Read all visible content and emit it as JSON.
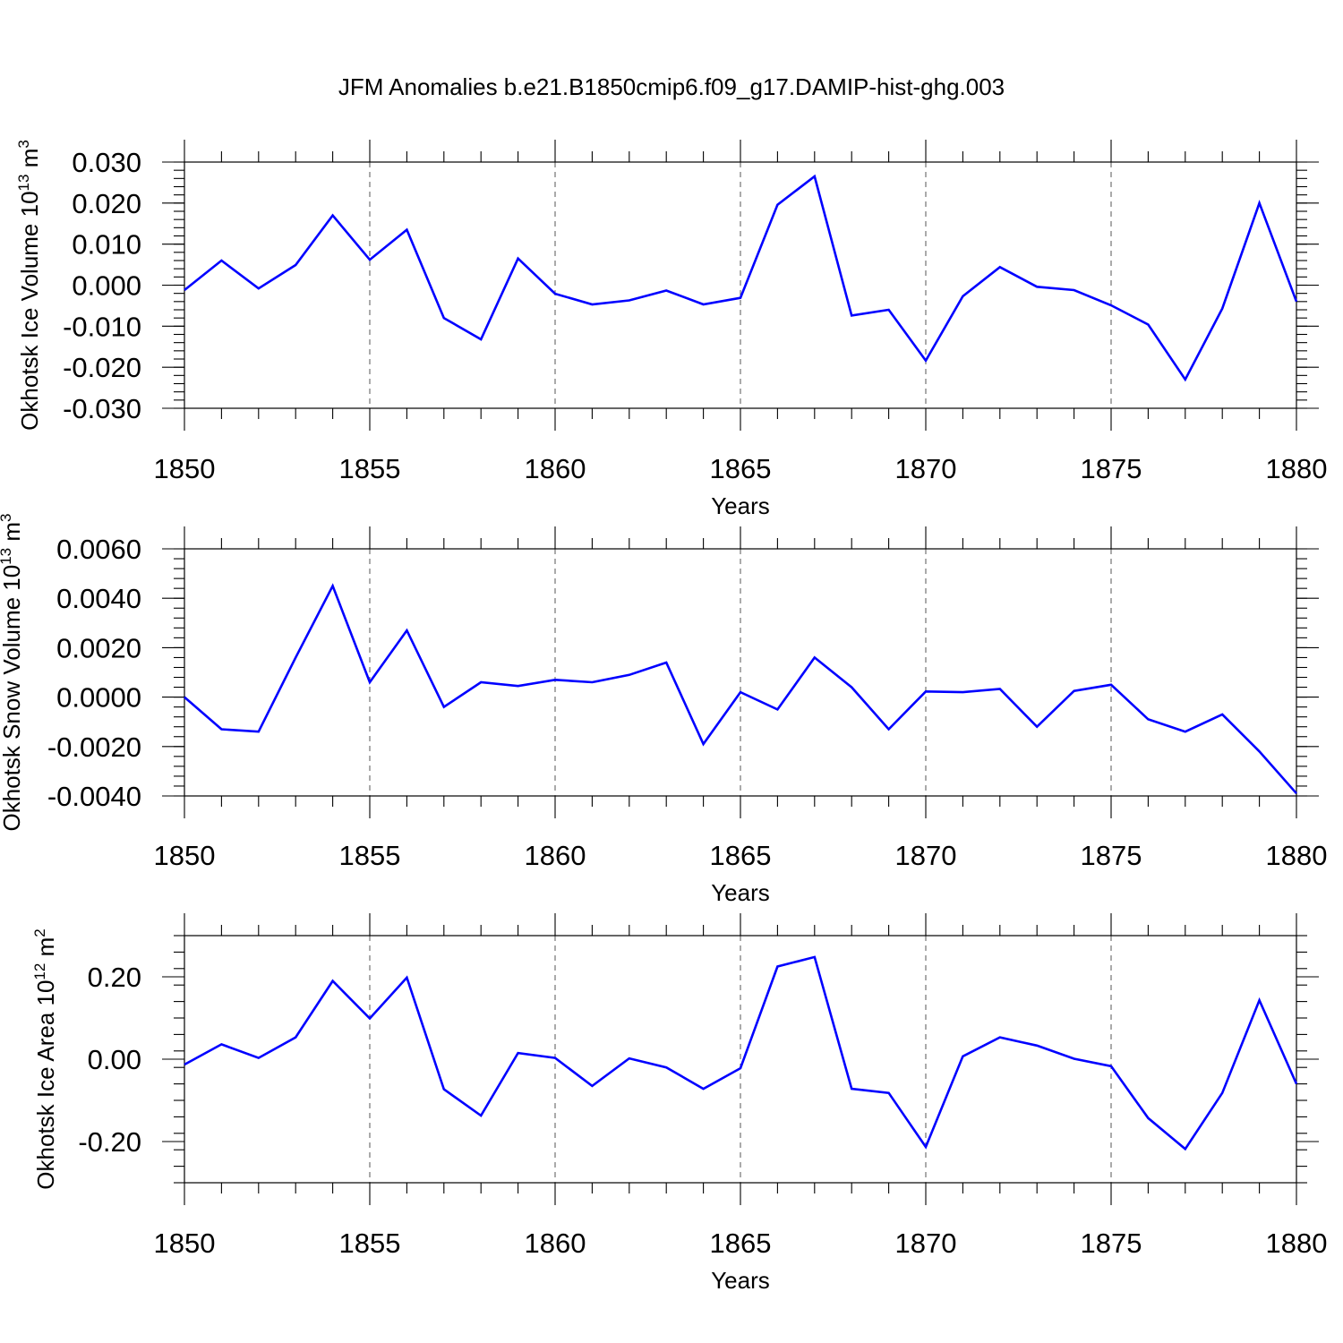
{
  "title": "JFM Anomalies b.e21.B1850cmip6.f09_g17.DAMIP-hist-ghg.003",
  "colors": {
    "line": "#0000ff",
    "grid": "#666666",
    "axes": "#000000"
  },
  "chart_data": [
    {
      "type": "line",
      "ylabel": "Okhotsk Ice Volume 10",
      "ylabel_exp": "13",
      "ylabel_unit": " m",
      "ylabel_unit_exp": "3",
      "xlabel": "Years",
      "xlim": [
        1850,
        1880
      ],
      "ylim": [
        -0.03,
        0.03
      ],
      "xticks": [
        "1850",
        "1855",
        "1860",
        "1865",
        "1870",
        "1875",
        "1880"
      ],
      "yticks": [
        "0.030",
        "0.020",
        "0.010",
        "0.000",
        "-0.010",
        "-0.020",
        "-0.030"
      ],
      "ytick_values": [
        0.03,
        0.02,
        0.01,
        0.0,
        -0.01,
        -0.02,
        -0.03
      ],
      "grid": "vertical dashed at labelled years",
      "x": [
        1850,
        1851,
        1852,
        1853,
        1854,
        1855,
        1856,
        1857,
        1858,
        1859,
        1860,
        1861,
        1862,
        1863,
        1864,
        1865,
        1866,
        1867,
        1868,
        1869,
        1870,
        1871,
        1872,
        1873,
        1874,
        1875,
        1876,
        1877,
        1878,
        1879,
        1880
      ],
      "series": [
        {
          "values": [
            -0.0012,
            0.006,
            -0.0008,
            0.0049,
            0.017,
            0.0062,
            0.0135,
            -0.008,
            -0.0132,
            0.0065,
            -0.0021,
            -0.0047,
            -0.0037,
            -0.0013,
            -0.0047,
            -0.0031,
            0.0196,
            0.0265,
            -0.0074,
            -0.006,
            -0.0184,
            -0.0027,
            0.0044,
            -0.0004,
            -0.0012,
            -0.0049,
            -0.0096,
            -0.023,
            -0.0057,
            0.02,
            -0.004
          ]
        }
      ]
    },
    {
      "type": "line",
      "ylabel": "Okhotsk Snow Volume 10",
      "ylabel_exp": "13",
      "ylabel_unit": " m",
      "ylabel_unit_exp": "3",
      "xlabel": "Years",
      "xlim": [
        1850,
        1880
      ],
      "ylim": [
        -0.004,
        0.006
      ],
      "xticks": [
        "1850",
        "1855",
        "1860",
        "1865",
        "1870",
        "1875",
        "1880"
      ],
      "yticks": [
        "0.0060",
        "0.0040",
        "0.0020",
        "0.0000",
        "-0.0020",
        "-0.0040"
      ],
      "ytick_values": [
        0.006,
        0.004,
        0.002,
        0.0,
        -0.002,
        -0.004
      ],
      "grid": "vertical dashed at labelled years",
      "x": [
        1850,
        1851,
        1852,
        1853,
        1854,
        1855,
        1856,
        1857,
        1858,
        1859,
        1860,
        1861,
        1862,
        1863,
        1864,
        1865,
        1866,
        1867,
        1868,
        1869,
        1870,
        1871,
        1872,
        1873,
        1874,
        1875,
        1876,
        1877,
        1878,
        1879,
        1880
      ],
      "series": [
        {
          "values": [
            0.0,
            -0.0013,
            -0.0014,
            0.0016,
            0.0045,
            0.0006,
            0.0027,
            -0.0004,
            0.0006,
            0.00045,
            0.0007,
            0.0006,
            0.0009,
            0.0014,
            -0.0019,
            0.0002,
            -0.0005,
            0.0016,
            0.0004,
            -0.0013,
            0.00023,
            0.0002,
            0.00033,
            -0.0012,
            0.00025,
            0.0005,
            -0.0009,
            -0.0014,
            -0.0007,
            -0.0022,
            -0.0039
          ]
        }
      ]
    },
    {
      "type": "line",
      "ylabel": "Okhotsk Ice Area 10",
      "ylabel_exp": "12",
      "ylabel_unit": " m",
      "ylabel_unit_exp": "2",
      "xlabel": "Years",
      "xlim": [
        1850,
        1880
      ],
      "ylim": [
        -0.3,
        0.3
      ],
      "xticks": [
        "1850",
        "1855",
        "1860",
        "1865",
        "1870",
        "1875",
        "1880"
      ],
      "yticks": [
        "0.20",
        "0.00",
        "-0.20"
      ],
      "ytick_values": [
        0.2,
        0.0,
        -0.2
      ],
      "grid": "vertical dashed at labelled years",
      "x": [
        1850,
        1851,
        1852,
        1853,
        1854,
        1855,
        1856,
        1857,
        1858,
        1859,
        1860,
        1861,
        1862,
        1863,
        1864,
        1865,
        1866,
        1867,
        1868,
        1869,
        1870,
        1871,
        1872,
        1873,
        1874,
        1875,
        1876,
        1877,
        1878,
        1879,
        1880
      ],
      "series": [
        {
          "values": [
            -0.013,
            0.036,
            0.003,
            0.053,
            0.19,
            0.099,
            0.198,
            -0.073,
            -0.137,
            0.015,
            0.003,
            -0.065,
            0.002,
            -0.02,
            -0.072,
            -0.022,
            0.225,
            0.248,
            -0.072,
            -0.082,
            -0.213,
            0.007,
            0.053,
            0.033,
            0.001,
            -0.017,
            -0.143,
            -0.218,
            -0.082,
            0.143,
            -0.06
          ]
        }
      ]
    }
  ]
}
